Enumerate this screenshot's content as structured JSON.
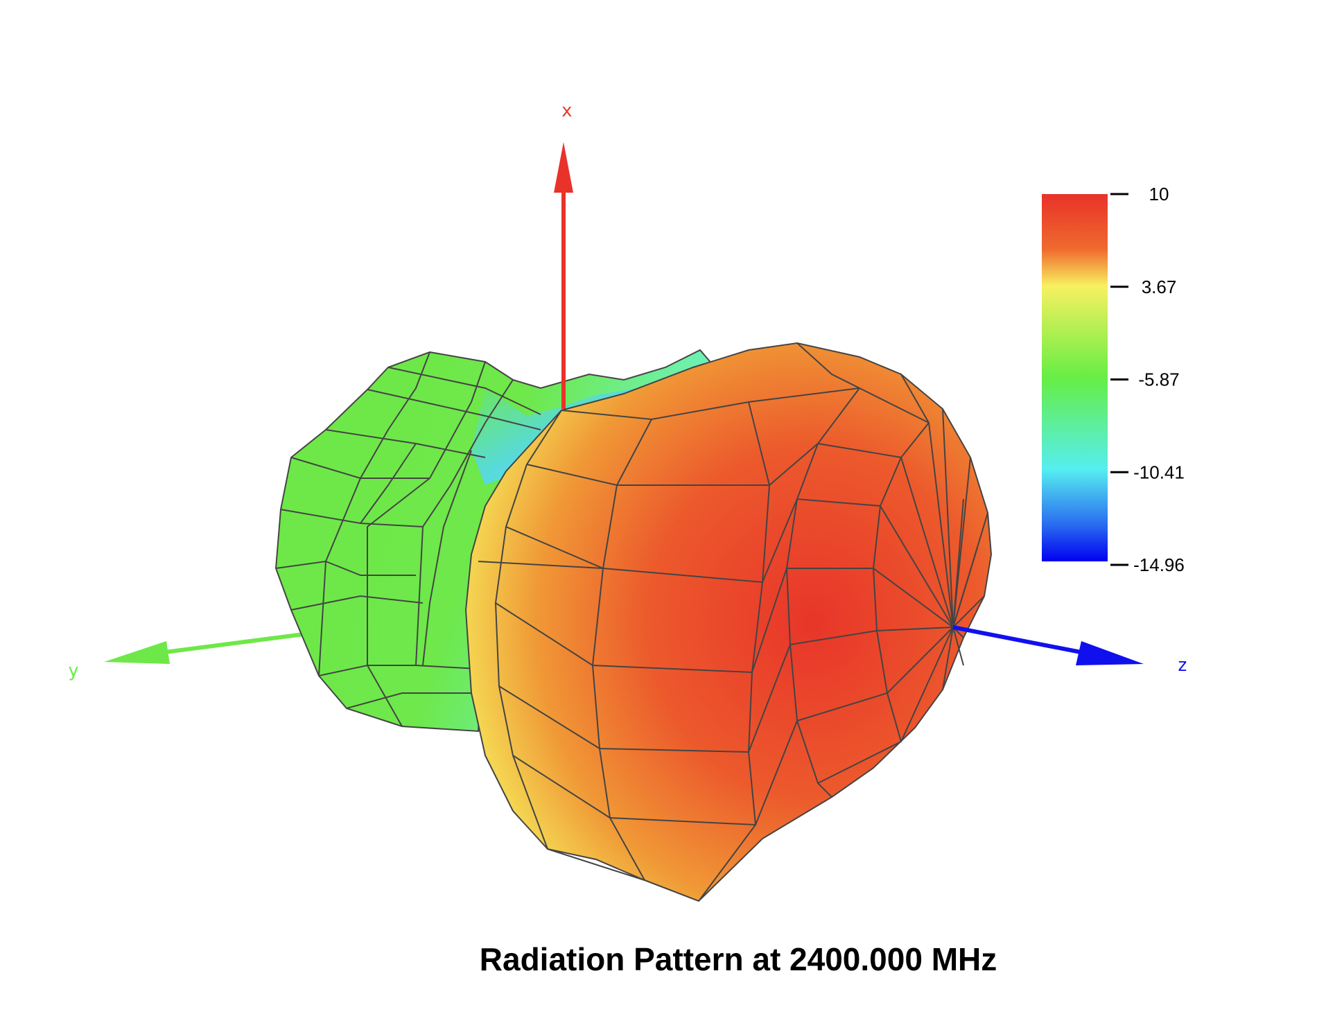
{
  "chart_data": {
    "type": "3d-surface",
    "title": "Radiation Pattern at 2400.000 MHz",
    "axes": {
      "x": {
        "label": "x",
        "color": "#e8322a"
      },
      "y": {
        "label": "y",
        "color": "#66ee44"
      },
      "z": {
        "label": "z",
        "color": "#1010ee"
      }
    },
    "colorbar": {
      "ticks": [
        "10",
        "3.67",
        "-5.87",
        "-10.41",
        "-14.96"
      ],
      "range": [
        -14.96,
        10
      ],
      "colors": [
        "#e8322a",
        "#f08a32",
        "#f6f05a",
        "#66ee44",
        "#55eef0",
        "#2878f0",
        "#0000f0"
      ]
    }
  }
}
